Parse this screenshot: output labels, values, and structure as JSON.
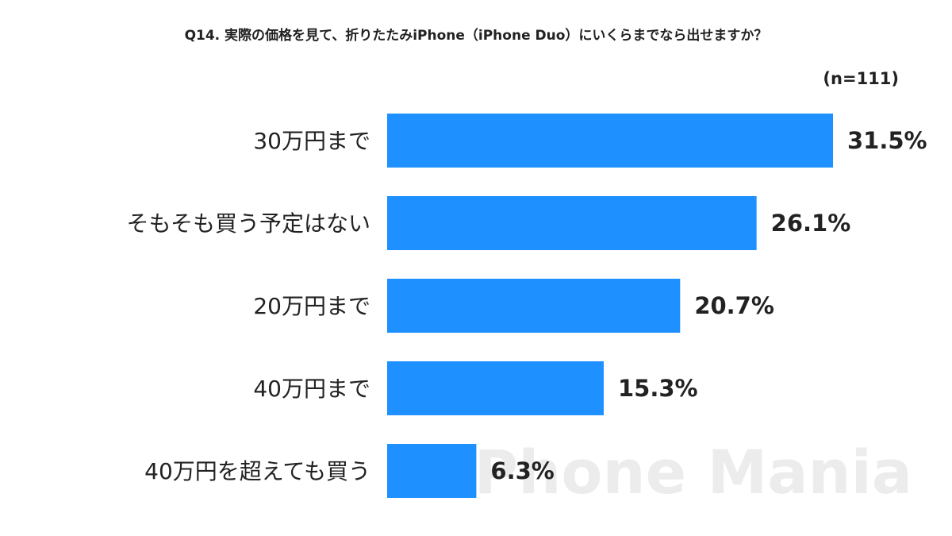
{
  "chart_data": {
    "type": "bar",
    "orientation": "horizontal",
    "title": "Q14. 実際の価格を見て、折りたたみiPhone（iPhone Duo）にいくらまでなら出せますか？",
    "subtitle": "(n=111)",
    "watermark": "iPhone Mania",
    "categories": [
      "30万円まで",
      "そもそも買う予定はない",
      "20万円まで",
      "40万円まで",
      "40万円を超えても買う"
    ],
    "values": [
      31.5,
      26.1,
      20.7,
      15.3,
      6.3
    ],
    "value_labels": [
      "31.5%",
      "26.1%",
      "20.7%",
      "15.3%",
      "6.3%"
    ],
    "color": "#1e90ff"
  }
}
